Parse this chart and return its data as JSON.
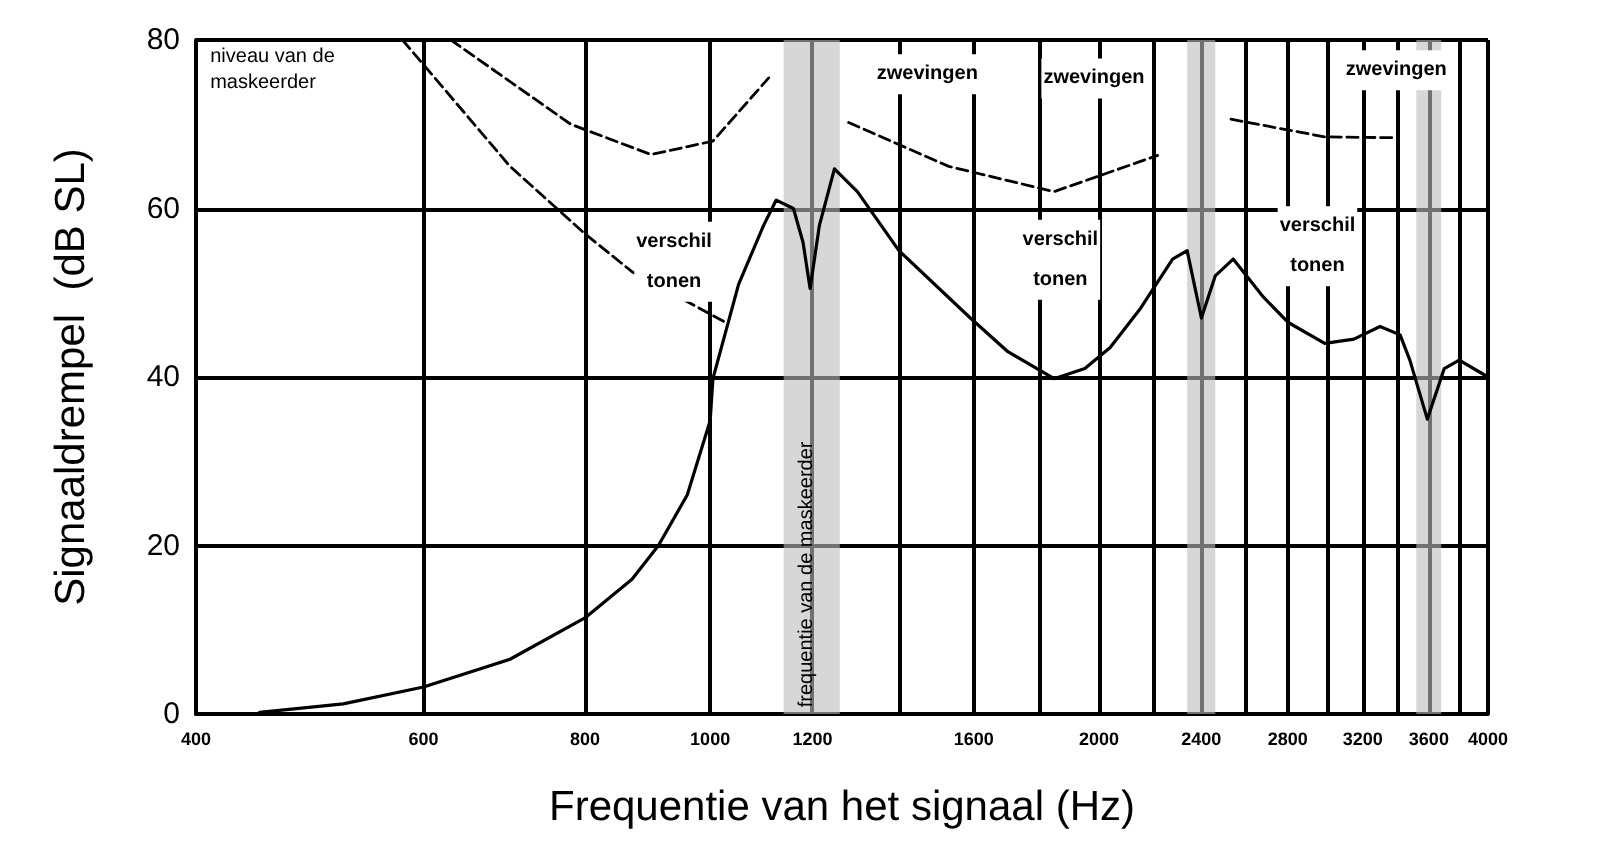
{
  "chart_data": {
    "type": "line",
    "xlabel": "Frequentie van het signaal (Hz)",
    "ylabel": "Signaaldrempel  (dB SL)",
    "log": "x",
    "xlim": [
      400,
      4000
    ],
    "ylim": [
      0,
      80
    ],
    "xticks": [
      400,
      600,
      800,
      1000,
      1200,
      {
        "value": 1400,
        "label": null
      },
      1600,
      {
        "value": 1800,
        "label": null
      },
      2000,
      {
        "value": 2200,
        "label": null
      },
      2400,
      {
        "value": 2600,
        "label": null
      },
      2800,
      {
        "value": 3000,
        "label": null
      },
      3200,
      {
        "value": 3400,
        "label": null
      },
      3600,
      {
        "value": 3800,
        "label": null
      },
      4000
    ],
    "yticks": [
      0,
      20,
      40,
      60,
      80
    ],
    "grid": true,
    "marker": "none",
    "series": [
      {
        "color": "#000000",
        "line_style": "solid",
        "x": [
          448,
          520,
          600,
          700,
          800,
          870,
          912,
          960,
          1000,
          1005,
          1052,
          1100,
          1125,
          1160,
          1180,
          1195,
          1215,
          1248,
          1300,
          1400,
          1590,
          1700,
          1846,
          1950,
          2040,
          2150,
          2280,
          2340,
          2400,
          2460,
          2540,
          2680,
          2800,
          2990,
          3150,
          3300,
          3420,
          3480,
          3590,
          3700,
          3800,
          4000
        ],
        "values": [
          0.2,
          1.2,
          3.2,
          6.5,
          11.4,
          16,
          20,
          26,
          34.8,
          39.8,
          51,
          58,
          61,
          60,
          56,
          50.5,
          58,
          64.7,
          62,
          55,
          47,
          43,
          39.8,
          41,
          43.5,
          48,
          54,
          55,
          47,
          52,
          54,
          49.5,
          46.5,
          44,
          44.5,
          46,
          45,
          42,
          35,
          41,
          42,
          40
        ]
      },
      {
        "color": "#000000",
        "line_style": "dashed",
        "x": [
          578,
          700,
          800,
          870,
          1030
        ],
        "values": [
          80,
          65,
          57,
          52.5,
          46.4
        ]
      },
      {
        "color": "#000000",
        "line_style": "dashed",
        "x": [
          630,
          780,
          900,
          1005,
          1110
        ],
        "values": [
          80,
          70,
          66.4,
          68,
          75.5
        ]
      },
      {
        "color": "#000000",
        "line_style": "dashed",
        "x": [
          1280,
          1530,
          1846,
          2220
        ],
        "values": [
          70.2,
          65,
          62,
          66.3
        ]
      },
      {
        "color": "#000000",
        "line_style": "dashed",
        "x": [
          2530,
          2990,
          3380
        ],
        "values": [
          70.6,
          68.5,
          68.4
        ]
      }
    ],
    "bands": [
      {
        "axis": "x",
        "from": 1140,
        "to": 1260,
        "color": "#bdbdbd"
      },
      {
        "axis": "x",
        "from": 2340,
        "to": 2460,
        "color": "#bdbdbd"
      },
      {
        "axis": "x",
        "from": 3520,
        "to": 3680,
        "color": "#bdbdbd"
      }
    ],
    "annotations": [
      "niveau van de maskeerder",
      "frequentie van de maskeerder",
      "verschil tonen",
      "verschil tonen",
      "verschil tonen",
      "zwevingen",
      "zwevingen",
      "zwevingen"
    ]
  }
}
